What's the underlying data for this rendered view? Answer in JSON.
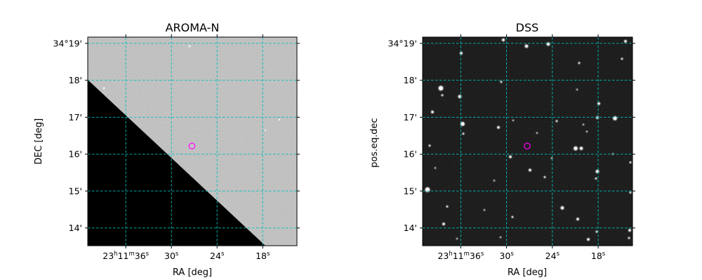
{
  "chart_data": [
    {
      "type": "image",
      "title": "AROMA-N",
      "xlabel": "RA [deg]",
      "ylabel": "DEC [deg]",
      "image_style": "grayscale survey image, upper-right region light gray, lower-left triangle black (no coverage)",
      "x_ticks": [
        {
          "label": "23",
          "sup": "h",
          "label2": "11",
          "sup2": "m",
          "label3": "36",
          "sup3": "s",
          "ra_seconds": 36
        },
        {
          "label": "30",
          "sup": "s",
          "ra_seconds": 30
        },
        {
          "label": "24",
          "sup": "s",
          "ra_seconds": 24
        },
        {
          "label": "18",
          "sup": "s",
          "ra_seconds": 18
        }
      ],
      "y_ticks": [
        "34°19'",
        "18'",
        "17'",
        "16'",
        "15'",
        "14'"
      ],
      "y_values_arcmin": [
        19,
        18,
        17,
        16,
        15,
        14
      ],
      "x_range_ra_seconds": [
        41.0,
        13.5
      ],
      "y_range_arcmin": [
        19.17,
        13.52
      ],
      "grid": true,
      "grid_color": "#00bfbf",
      "marker": {
        "shape": "circle",
        "color": "#ff00ff",
        "ra_seconds": 27.3,
        "dec_arcmin": 16.22
      }
    },
    {
      "type": "image",
      "title": "DSS",
      "xlabel": "RA [deg]",
      "ylabel": "pos.eq.dec",
      "image_style": "grayscale star field, dark background with white point sources",
      "x_ticks": [
        {
          "label": "23",
          "sup": "h",
          "label2": "11",
          "sup2": "m",
          "label3": "36",
          "sup3": "s",
          "ra_seconds": 36
        },
        {
          "label": "30",
          "sup": "s",
          "ra_seconds": 30
        },
        {
          "label": "24",
          "sup": "s",
          "ra_seconds": 24
        },
        {
          "label": "18",
          "sup": "s",
          "ra_seconds": 18
        }
      ],
      "y_ticks": [
        "34°19'",
        "18'",
        "17'",
        "16'",
        "15'",
        "14'"
      ],
      "y_values_arcmin": [
        19,
        18,
        17,
        16,
        15,
        14
      ],
      "x_range_ra_seconds": [
        41.0,
        13.5
      ],
      "y_range_arcmin": [
        19.17,
        13.52
      ],
      "grid": true,
      "grid_color": "#00bfbf",
      "marker": {
        "shape": "circle",
        "color": "#ff00ff",
        "ra_seconds": 27.3,
        "dec_arcmin": 16.22
      }
    }
  ]
}
